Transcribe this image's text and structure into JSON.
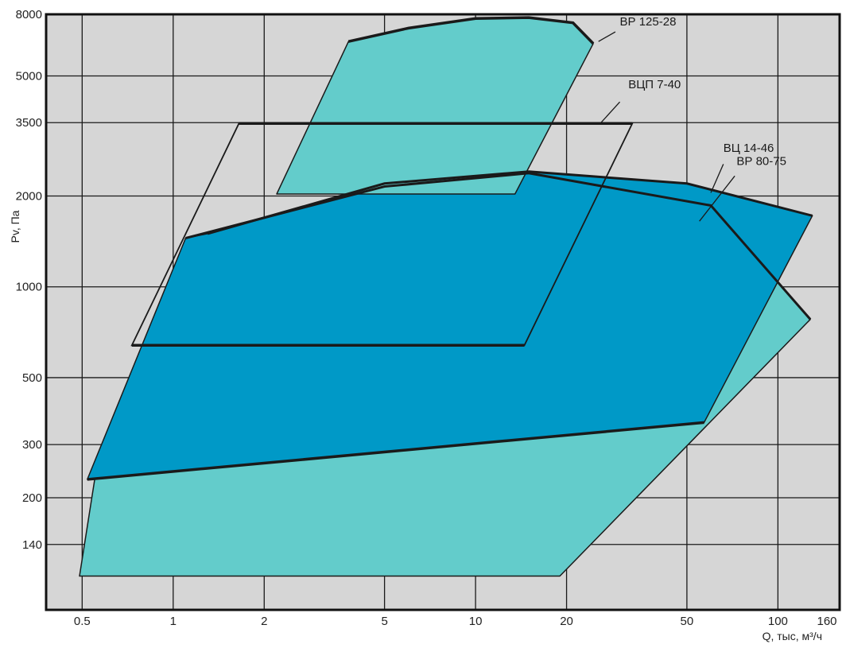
{
  "chart_data": {
    "type": "area",
    "title": "",
    "xlabel": "Q, тыс, м³/ч",
    "ylabel": "Pv, Па",
    "x_scale": "log",
    "y_scale": "log",
    "xlim": [
      0.38,
      160
    ],
    "ylim": [
      85,
      8000
    ],
    "x_ticks": [
      0.5,
      1,
      2,
      5,
      10,
      20,
      50,
      100
    ],
    "x_tick_labels": [
      "0.5",
      "1",
      "2",
      "5",
      "10",
      "20",
      "50",
      "100"
    ],
    "x_end_label": "160",
    "y_ticks": [
      8000,
      5000,
      3500,
      2000,
      1000,
      500,
      300,
      200,
      140
    ],
    "y_tick_labels": [
      "8000",
      "5000",
      "3500",
      "2000",
      "1000",
      "500",
      "300",
      "200",
      "140"
    ],
    "grid": true,
    "background": "#d6d6d6",
    "series": [
      {
        "name": "ВЦ 14-46",
        "color": "#63cccb",
        "points": [
          [
            0.49,
            110
          ],
          [
            19,
            110
          ],
          [
            128,
            780
          ],
          [
            60,
            1860
          ],
          [
            15,
            2380
          ],
          [
            5,
            2150
          ],
          [
            1.1,
            1450
          ],
          [
            0.55,
            230
          ]
        ]
      },
      {
        "name": "ВР 80-75",
        "color": "#0099c7",
        "points": [
          [
            0.52,
            230
          ],
          [
            57,
            355
          ],
          [
            130,
            1720
          ],
          [
            50,
            2200
          ],
          [
            15,
            2410
          ],
          [
            5,
            2200
          ],
          [
            1.3,
            1500
          ],
          [
            1.1,
            1450
          ]
        ]
      },
      {
        "name": "ВЦП 7-40",
        "color": "none",
        "points": [
          [
            0.73,
            640
          ],
          [
            14.5,
            640
          ],
          [
            33,
            3480
          ],
          [
            1.65,
            3480
          ]
        ]
      },
      {
        "name": "ВР 125-28",
        "color": "#63cccb",
        "points": [
          [
            2.2,
            2030
          ],
          [
            13.5,
            2030
          ],
          [
            24.5,
            6400
          ],
          [
            21,
            7500
          ],
          [
            15,
            7800
          ],
          [
            10,
            7750
          ],
          [
            6,
            7200
          ],
          [
            3.8,
            6500
          ]
        ]
      }
    ],
    "annotations": [
      {
        "label": "ВР 125-28",
        "x": 30,
        "y": 7350
      },
      {
        "label": "ВЦП 7-40",
        "x": 32,
        "y": 4550
      },
      {
        "label": "ВЦ 14-46",
        "x": 66,
        "y": 2800
      },
      {
        "label": "ВР 80-75",
        "x": 73,
        "y": 2530
      }
    ]
  }
}
